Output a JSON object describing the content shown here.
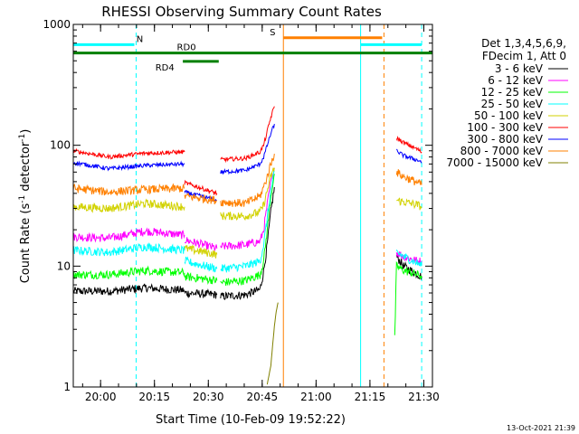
{
  "chart_data": {
    "type": "line",
    "title": "RHESSI Observing Summary Count Rates",
    "xlabel": "Start Time (10-Feb-09 19:52:22)",
    "ylabel_parts": [
      "Count Rate (s",
      "-1",
      " detector",
      "-1",
      ")"
    ],
    "date_stamp": "13-Oct-2021 21:39",
    "y_scale": "log",
    "ylim": [
      1,
      1000
    ],
    "xlim_minutes_after_19_52_22": [
      0,
      100
    ],
    "y_ticks": [
      {
        "value": 1,
        "label": "1"
      },
      {
        "value": 10,
        "label": "10"
      },
      {
        "value": 100,
        "label": "100"
      },
      {
        "value": 1000,
        "label": "1000"
      }
    ],
    "x_ticks": [
      {
        "t": 7.6,
        "label": "20:00"
      },
      {
        "t": 22.6,
        "label": "20:15"
      },
      {
        "t": 37.6,
        "label": "20:30"
      },
      {
        "t": 52.6,
        "label": "20:45"
      },
      {
        "t": 67.6,
        "label": "21:00"
      },
      {
        "t": 82.6,
        "label": "21:15"
      },
      {
        "t": 97.6,
        "label": "21:30"
      }
    ],
    "legend_header": [
      "Det 1,3,4,5,6,9,",
      "FDecim 1, Att 0"
    ],
    "legend_position": "right",
    "series": [
      {
        "name": "3 - 6 keV",
        "color": "#000000",
        "segments": [
          {
            "t": [
              0,
              10,
              20,
              31
            ],
            "v": [
              6.2,
              6.2,
              6.6,
              6.3
            ]
          },
          {
            "t": [
              31,
              40
            ],
            "v": [
              6.0,
              5.8
            ]
          },
          {
            "t": [
              41,
              48,
              52,
              53,
              54,
              55,
              56
            ],
            "v": [
              5.6,
              5.8,
              6.4,
              9,
              15,
              28,
              45
            ]
          },
          {
            "t": [
              90,
              92,
              96,
              97
            ],
            "v": [
              12,
              10,
              8.5,
              8.2
            ]
          }
        ]
      },
      {
        "name": "6 - 12 keV",
        "color": "#ff00ff",
        "segments": [
          {
            "t": [
              0,
              10,
              20,
              31
            ],
            "v": [
              17.5,
              17,
              19.5,
              18
            ]
          },
          {
            "t": [
              31,
              40
            ],
            "v": [
              16.5,
              14
            ]
          },
          {
            "t": [
              41,
              48,
              52,
              53,
              54,
              55,
              56
            ],
            "v": [
              14.5,
              15,
              16,
              20,
              32,
              50,
              65
            ]
          },
          {
            "t": [
              90,
              92,
              96,
              97
            ],
            "v": [
              13,
              12,
              11,
              11
            ]
          }
        ]
      },
      {
        "name": "12 - 25 keV",
        "color": "#00ff00",
        "segments": [
          {
            "t": [
              0,
              10,
              20,
              31
            ],
            "v": [
              8.5,
              8.5,
              9.2,
              8.8
            ]
          },
          {
            "t": [
              31,
              40
            ],
            "v": [
              8.2,
              7.6
            ]
          },
          {
            "t": [
              41,
              48,
              52,
              53,
              54,
              55,
              56
            ],
            "v": [
              7.3,
              7.6,
              8.5,
              11,
              20,
              38,
              58
            ]
          },
          {
            "t": [
              89.5,
              90,
              92,
              96,
              97
            ],
            "v": [
              2.5,
              10,
              9.2,
              8.5,
              8.3
            ]
          }
        ]
      },
      {
        "name": "25 - 50 keV",
        "color": "#00ffff",
        "segments": [
          {
            "t": [
              0,
              10,
              20,
              31
            ],
            "v": [
              13.5,
              13,
              14.5,
              13.5
            ]
          },
          {
            "t": [
              31,
              40
            ],
            "v": [
              11,
              9.5
            ]
          },
          {
            "t": [
              41,
              48,
              52,
              53,
              54,
              55,
              56
            ],
            "v": [
              9.5,
              10,
              11,
              15,
              25,
              42,
              60
            ]
          },
          {
            "t": [
              90,
              92,
              96,
              97
            ],
            "v": [
              13,
              12,
              10.5,
              10
            ]
          }
        ]
      },
      {
        "name": "50 - 100 keV",
        "color": "#d2d200",
        "segments": [
          {
            "t": [
              0,
              10,
              20,
              31
            ],
            "v": [
              31,
              30,
              33,
              31
            ]
          },
          {
            "t": [
              31,
              40
            ],
            "v": [
              14,
              12.5
            ]
          },
          {
            "t": [
              41,
              48,
              52,
              53,
              54,
              55,
              56
            ],
            "v": [
              26,
              26,
              28,
              32,
              42,
              55,
              65
            ]
          },
          {
            "t": [
              90,
              92,
              96,
              97
            ],
            "v": [
              35,
              34,
              32,
              31
            ]
          }
        ]
      },
      {
        "name": "100 - 300 keV",
        "color": "#ff0000",
        "segments": [
          {
            "t": [
              0,
              10,
              20,
              31
            ],
            "v": [
              90,
              80,
              86,
              88
            ]
          },
          {
            "t": [
              31,
              40
            ],
            "v": [
              49,
              40
            ]
          },
          {
            "t": [
              41,
              48,
              52,
              53,
              54,
              55,
              56
            ],
            "v": [
              76,
              78,
              88,
              100,
              130,
              170,
              210
            ]
          },
          {
            "t": [
              90,
              92,
              96,
              97
            ],
            "v": [
              115,
              105,
              92,
              88
            ]
          }
        ]
      },
      {
        "name": "300 - 800 keV",
        "color": "#0000ff",
        "segments": [
          {
            "t": [
              0,
              10,
              20,
              31
            ],
            "v": [
              72,
              64,
              68,
              70
            ]
          },
          {
            "t": [
              31,
              40
            ],
            "v": [
              41,
              35
            ]
          },
          {
            "t": [
              41,
              48,
              52,
              53,
              54,
              55,
              56
            ],
            "v": [
              60,
              62,
              70,
              80,
              100,
              125,
              150
            ]
          },
          {
            "t": [
              90,
              92,
              96,
              97
            ],
            "v": [
              90,
              82,
              75,
              73
            ]
          }
        ]
      },
      {
        "name": "800 - 7000 keV",
        "color": "#ff8000",
        "segments": [
          {
            "t": [
              0,
              10,
              20,
              31
            ],
            "v": [
              44,
              41,
              43,
              44
            ]
          },
          {
            "t": [
              31,
              40
            ],
            "v": [
              38,
              35
            ]
          },
          {
            "t": [
              41,
              48,
              52,
              53,
              54,
              55,
              56
            ],
            "v": [
              34,
              33,
              38,
              45,
              55,
              70,
              85
            ]
          },
          {
            "t": [
              90,
              92,
              96,
              97
            ],
            "v": [
              60,
              55,
              49,
              47
            ]
          }
        ]
      },
      {
        "name": "7000 - 15000 keV",
        "color": "#808000",
        "segments": [
          {
            "t": [
              54,
              55,
              55.5,
              56,
              56.5,
              57
            ],
            "v": [
              1.05,
              1.5,
              2.2,
              3.2,
              4.2,
              5.0
            ]
          }
        ]
      }
    ],
    "flag_bars": [
      {
        "label": "N",
        "color": "#00ffff",
        "y_value": 680,
        "ranges": [
          [
            0,
            17
          ],
          [
            80,
            97
          ]
        ],
        "label_t": 18.5
      },
      {
        "label": "S",
        "color": "#ff8000",
        "y_value": 775,
        "ranges": [
          [
            58.5,
            86
          ]
        ],
        "label_t": 55.5
      },
      {
        "label": "RD0",
        "color": "#008000",
        "y_value": 580,
        "ranges": [
          [
            0,
            100
          ]
        ],
        "label_t": 31.5
      },
      {
        "label": "RD4",
        "color": "#008000",
        "y_value": 495,
        "ranges": [
          [
            30.5,
            40.5
          ]
        ],
        "label_t": 25.5
      }
    ],
    "vertical_markers": [
      {
        "t": 0,
        "color": "#00ffff",
        "dashed": false
      },
      {
        "t": 17.5,
        "color": "#00ffff",
        "dashed": true
      },
      {
        "t": 58.5,
        "color": "#ff8000",
        "dashed": false
      },
      {
        "t": 80,
        "color": "#00ffff",
        "dashed": false
      },
      {
        "t": 86.5,
        "color": "#ff8000",
        "dashed": true
      },
      {
        "t": 97,
        "color": "#00ffff",
        "dashed": true
      }
    ]
  }
}
